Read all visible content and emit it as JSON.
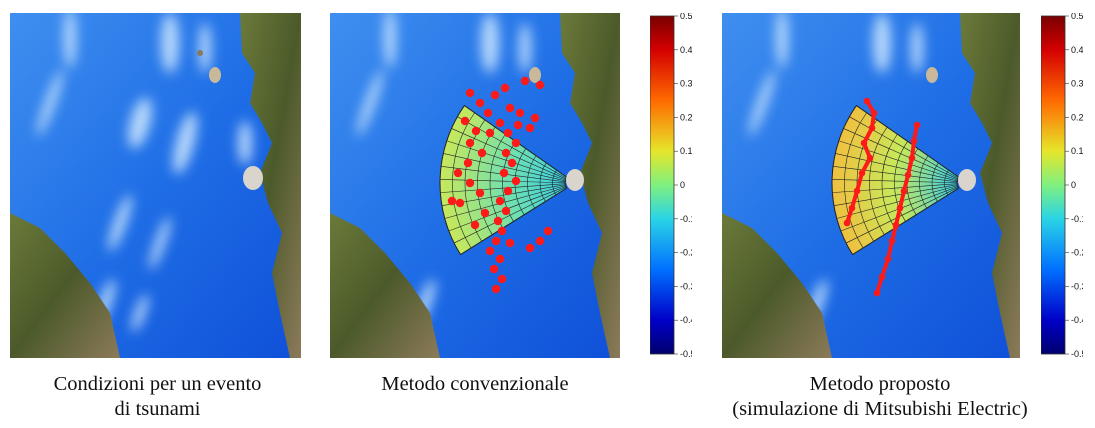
{
  "colorbar": {
    "ticks": [
      "0.5",
      "0.4",
      "0.3",
      "0.2",
      "0.1",
      "0",
      "-0.1",
      "-0.2",
      "-0.3",
      "-0.4",
      "-0.5"
    ],
    "colors": [
      "#7a0000",
      "#d40000",
      "#ff4a00",
      "#ffaa00",
      "#e6e62a",
      "#7ff07f",
      "#2ad4e6",
      "#0090ff",
      "#0040ff",
      "#0000c8",
      "#00006e"
    ]
  },
  "panels": [
    {
      "caption_line1": "Condizioni per un evento",
      "caption_line2": "di tsunami"
    },
    {
      "caption_line1": "Metodo convenzionale",
      "caption_line2": ""
    },
    {
      "caption_line1": "Metodo proposto",
      "caption_line2": "(simulazione di Mitsubishi Electric)"
    }
  ]
}
